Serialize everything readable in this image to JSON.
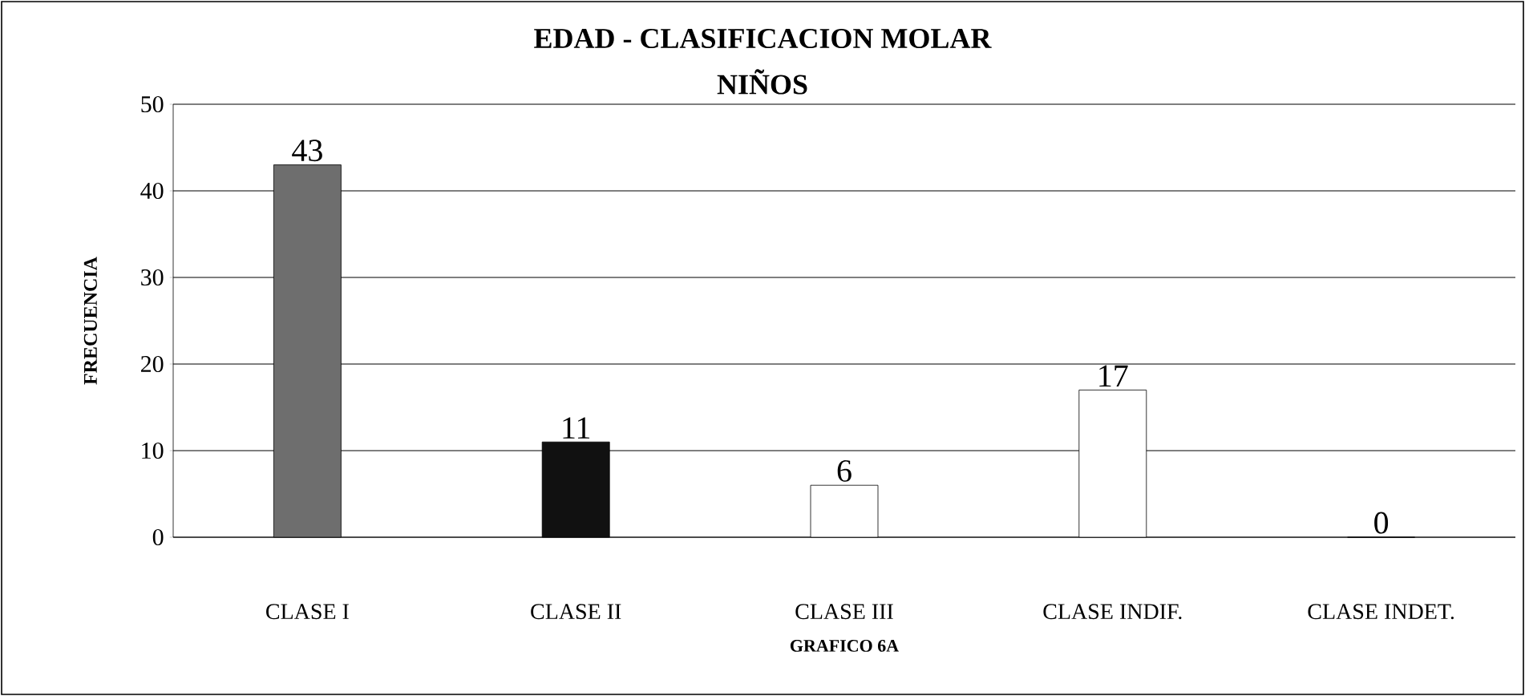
{
  "chart_data": {
    "type": "bar",
    "title": "EDAD - CLASIFICACION MOLAR",
    "subtitle": "NIÑOS",
    "xlabel": "GRAFICO 6A",
    "ylabel": "FRECUENCIA",
    "categories": [
      "CLASE I",
      "CLASE II",
      "CLASE III",
      "CLASE INDIF.",
      "CLASE INDET."
    ],
    "values": [
      43,
      11,
      6,
      17,
      0
    ],
    "colors": [
      "#6e6e6e",
      "#111111",
      "#ffffff",
      "#ffffff",
      "#ffffff"
    ],
    "ylim": [
      0,
      50
    ],
    "yticks": [
      0,
      10,
      20,
      30,
      40,
      50
    ],
    "grid": "y",
    "data_labels": true
  }
}
